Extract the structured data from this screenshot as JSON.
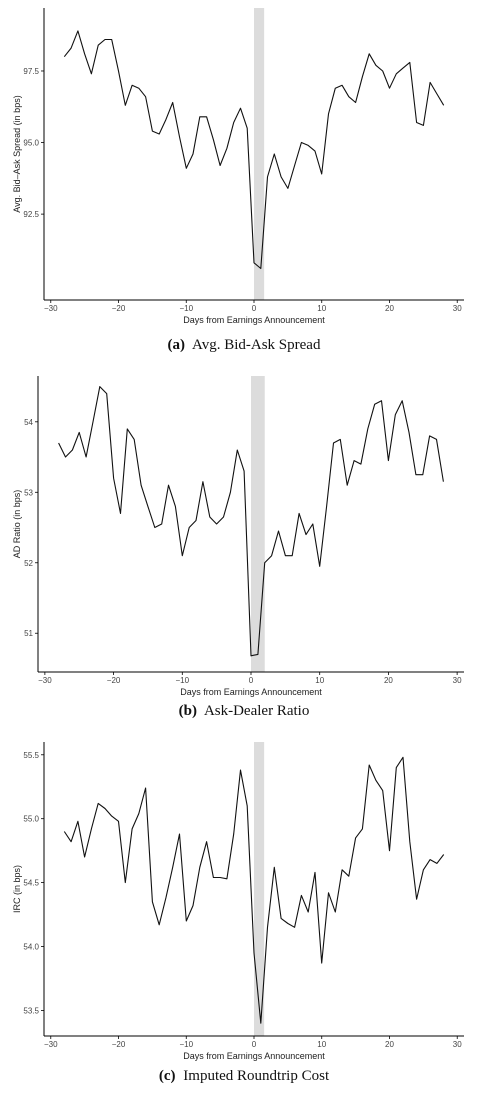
{
  "chart_data": [
    {
      "type": "line",
      "caption_tag": "(a)",
      "caption_text": "Avg. Bid-Ask Spread",
      "xlabel": "Days from Earnings Announcement",
      "ylabel": "Avg. Bid–Ask Spread (in bps)",
      "xlim": [
        -31,
        31
      ],
      "ylim": [
        89.5,
        99.7
      ],
      "xticks": [
        -30,
        -20,
        -10,
        0,
        10,
        20,
        30
      ],
      "yticks": [
        92.5,
        95.0,
        97.5
      ],
      "ytick_labels": [
        "92.5",
        "95.0",
        "97.5"
      ],
      "shade": [
        0,
        1.5
      ],
      "x": [
        -28,
        -27,
        -26,
        -25,
        -24,
        -23,
        -22,
        -21,
        -20,
        -19,
        -18,
        -17,
        -16,
        -15,
        -14,
        -13,
        -12,
        -11,
        -10,
        -9,
        -8,
        -7,
        -6,
        -5,
        -4,
        -3,
        -2,
        -1,
        0,
        1,
        2,
        3,
        4,
        5,
        6,
        7,
        8,
        9,
        10,
        11,
        12,
        13,
        14,
        15,
        16,
        17,
        18,
        19,
        20,
        21,
        22,
        23,
        24,
        25,
        26,
        27,
        28
      ],
      "y": [
        98.0,
        98.3,
        98.9,
        98.1,
        97.4,
        98.4,
        98.6,
        98.6,
        97.5,
        96.3,
        97.0,
        96.9,
        96.6,
        95.4,
        95.3,
        95.8,
        96.4,
        95.2,
        94.1,
        94.6,
        95.9,
        95.9,
        95.1,
        94.2,
        94.8,
        95.7,
        96.2,
        95.5,
        90.8,
        90.6,
        93.8,
        94.6,
        93.8,
        93.4,
        94.2,
        95.0,
        94.9,
        94.7,
        93.9,
        96.0,
        96.9,
        97.0,
        96.6,
        96.4,
        97.3,
        98.1,
        97.7,
        97.5,
        96.9,
        97.4,
        97.6,
        97.8,
        95.7,
        95.6,
        97.1,
        96.7,
        96.3
      ]
    },
    {
      "type": "line",
      "caption_tag": "(b)",
      "caption_text": "Ask-Dealer Ratio",
      "xlabel": "Days from Earnings Announcement",
      "ylabel": "AD Ratio (in bps)",
      "xlim": [
        -31,
        31
      ],
      "ylim": [
        50.45,
        54.65
      ],
      "xticks": [
        -30,
        -20,
        -10,
        0,
        10,
        20,
        30
      ],
      "yticks": [
        51,
        52,
        53,
        54
      ],
      "ytick_labels": [
        "51",
        "52",
        "53",
        "54"
      ],
      "shade": [
        0,
        2
      ],
      "x": [
        -28,
        -27,
        -26,
        -25,
        -24,
        -23,
        -22,
        -21,
        -20,
        -19,
        -18,
        -17,
        -16,
        -15,
        -14,
        -13,
        -12,
        -11,
        -10,
        -9,
        -8,
        -7,
        -6,
        -5,
        -4,
        -3,
        -2,
        -1,
        0,
        1,
        2,
        3,
        4,
        5,
        6,
        7,
        8,
        9,
        10,
        11,
        12,
        13,
        14,
        15,
        16,
        17,
        18,
        19,
        20,
        21,
        22,
        23,
        24,
        25,
        26,
        27,
        28
      ],
      "y": [
        53.7,
        53.5,
        53.6,
        53.85,
        53.5,
        54.0,
        54.5,
        54.4,
        53.2,
        52.7,
        53.9,
        53.75,
        53.1,
        52.8,
        52.5,
        52.55,
        53.1,
        52.8,
        52.1,
        52.5,
        52.6,
        53.15,
        52.65,
        52.55,
        52.65,
        53.0,
        53.6,
        53.3,
        50.68,
        50.7,
        52.0,
        52.1,
        52.45,
        52.1,
        52.1,
        52.7,
        52.4,
        52.55,
        51.95,
        52.8,
        53.7,
        53.75,
        53.1,
        53.45,
        53.4,
        53.9,
        54.25,
        54.3,
        53.45,
        54.1,
        54.3,
        53.85,
        53.25,
        53.25,
        53.8,
        53.75,
        53.15
      ]
    },
    {
      "type": "line",
      "caption_tag": "(c)",
      "caption_text": "Imputed Roundtrip Cost",
      "xlabel": "Days from Earnings Announcement",
      "ylabel": "IRC (in bps)",
      "xlim": [
        -31,
        31
      ],
      "ylim": [
        53.3,
        55.6
      ],
      "xticks": [
        -30,
        -20,
        -10,
        0,
        10,
        20,
        30
      ],
      "yticks": [
        53.5,
        54.0,
        54.5,
        55.0,
        55.5
      ],
      "ytick_labels": [
        "53.5",
        "54.0",
        "54.5",
        "55.0",
        "55.5"
      ],
      "shade": [
        0,
        1.5
      ],
      "x": [
        -28,
        -27,
        -26,
        -25,
        -24,
        -23,
        -22,
        -21,
        -20,
        -19,
        -18,
        -17,
        -16,
        -15,
        -14,
        -13,
        -12,
        -11,
        -10,
        -9,
        -8,
        -7,
        -6,
        -5,
        -4,
        -3,
        -2,
        -1,
        0,
        1,
        2,
        3,
        4,
        5,
        6,
        7,
        8,
        9,
        10,
        11,
        12,
        13,
        14,
        15,
        16,
        17,
        18,
        19,
        20,
        21,
        22,
        23,
        24,
        25,
        26,
        27,
        28
      ],
      "y": [
        54.9,
        54.82,
        54.98,
        54.7,
        54.92,
        55.12,
        55.08,
        55.02,
        54.98,
        54.5,
        54.92,
        55.04,
        55.24,
        54.35,
        54.17,
        54.38,
        54.62,
        54.88,
        54.2,
        54.32,
        54.62,
        54.82,
        54.54,
        54.54,
        54.53,
        54.88,
        55.38,
        55.1,
        53.95,
        53.4,
        54.15,
        54.62,
        54.22,
        54.18,
        54.15,
        54.4,
        54.27,
        54.58,
        53.87,
        54.42,
        54.27,
        54.6,
        54.55,
        54.85,
        54.92,
        55.42,
        55.3,
        55.22,
        54.75,
        55.4,
        55.48,
        54.82,
        54.37,
        54.6,
        54.68,
        54.65,
        54.72
      ]
    }
  ]
}
